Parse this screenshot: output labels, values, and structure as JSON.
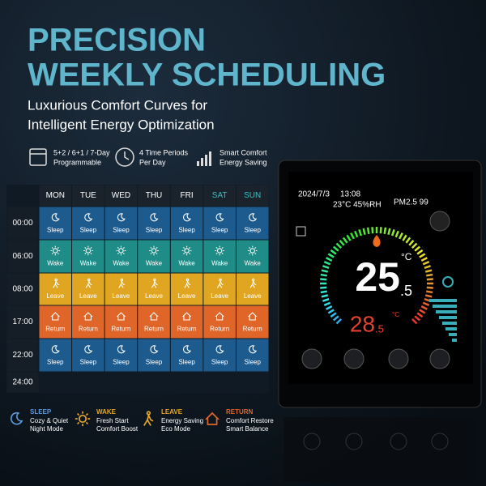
{
  "header": {
    "title": [
      "PRECISION",
      "WEEKLY SCHEDULING"
    ],
    "subtitle": [
      "Luxurious Comfort Curves for",
      "Intelligent Energy Optimization"
    ]
  },
  "features": [
    {
      "lines": [
        "5+2 / 6+1 / 7-Day",
        "Programmable"
      ]
    },
    {
      "lines": [
        "4 Time Periods",
        "Per Day"
      ]
    },
    {
      "lines": [
        "Smart Comfort",
        "Energy Saving"
      ]
    }
  ],
  "schedule": {
    "days": [
      "MON",
      "TUE",
      "WED",
      "THU",
      "FRI",
      "SAT",
      "SUN"
    ],
    "rows": [
      {
        "time": "00:00",
        "color": "#1d5b8f",
        "cells": [
          "Sleep",
          "Sleep",
          "Sleep",
          "Sleep",
          "Sleep",
          "Sleep",
          "Sleep"
        ]
      },
      {
        "time": "06:00",
        "color": "#1f8c87",
        "cells": [
          "Wake",
          "Wake",
          "Wake",
          "Wake",
          "Wake",
          "Wake",
          "Wake"
        ]
      },
      {
        "time": "08:00",
        "color": "#e0a622",
        "cells": [
          "Leave",
          "Leave",
          "Leave",
          "Leave",
          "Leave",
          "Leave",
          "Leave"
        ]
      },
      {
        "time": "17:00",
        "color": "#df6529",
        "cells": [
          "Return",
          "Return",
          "Return",
          "Return",
          "Return",
          "Return",
          "Return"
        ]
      },
      {
        "time": "22:00",
        "color": "#1d5b8f",
        "cells": [
          "Sleep",
          "Sleep",
          "Sleep",
          "Sleep",
          "Sleep",
          "Sleep",
          "Sleep"
        ]
      },
      {
        "time": "24:00",
        "color": "#0f1a24",
        "cells": []
      }
    ]
  },
  "legend": [
    {
      "name": "SLEEP",
      "color": "#5b9be0",
      "lines": [
        "Cozy & Quiet",
        "Night Mode"
      ]
    },
    {
      "name": "WAKE",
      "color": "#e6a72a",
      "lines": [
        "Fresh Start",
        "Comfort Boost"
      ]
    },
    {
      "name": "LEAVE",
      "color": "#e6a72a",
      "lines": [
        "Energy Saving",
        "Eco Mode"
      ]
    },
    {
      "name": "RETURN",
      "color": "#e0652a",
      "lines": [
        "Comfort Restore",
        "Smart Balance"
      ]
    }
  ],
  "device": {
    "date": "2024/7/3",
    "time": "13:08",
    "climate": "23°C 45%RH",
    "pm": "PM2.5 99",
    "setpoint": "25",
    "setpoint_decimal": ".5",
    "unit": "°C",
    "current": "28",
    "current_decimal": ".5",
    "current_unit": "°C"
  }
}
